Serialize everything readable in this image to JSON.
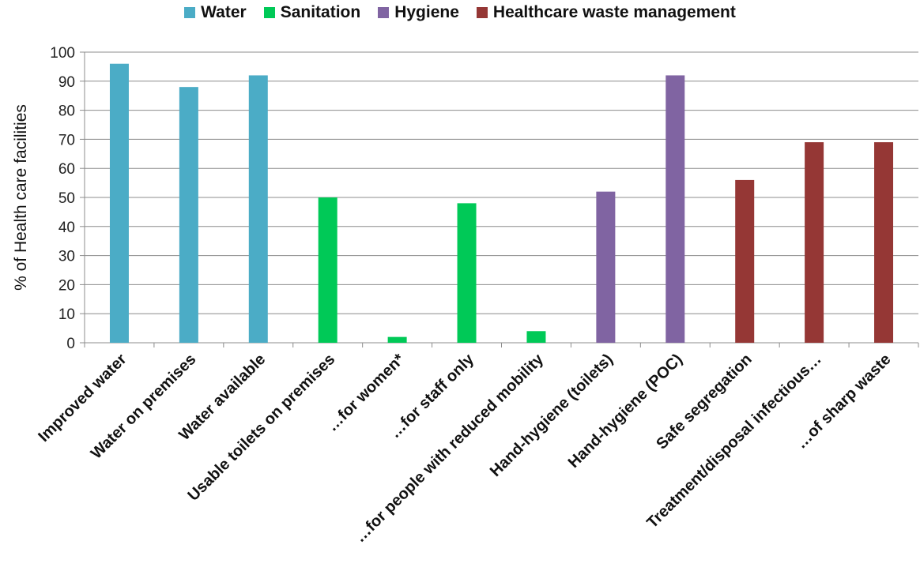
{
  "chart_data": {
    "type": "bar",
    "ylabel": "% of Health care facilities",
    "xlabel": "",
    "ylim": [
      0,
      100
    ],
    "yticks": [
      0,
      10,
      20,
      30,
      40,
      50,
      60,
      70,
      80,
      90,
      100
    ],
    "grid": true,
    "legend_position": "top",
    "series": [
      {
        "name": "Water",
        "color": "#4bacc6"
      },
      {
        "name": "Sanitation",
        "color": "#00c957"
      },
      {
        "name": "Hygiene",
        "color": "#8064a2"
      },
      {
        "name": "Healthcare waste management",
        "color": "#953735"
      }
    ],
    "categories": [
      "Improved water",
      "Water on premises",
      "Water available",
      "Usable toilets on premises",
      "…for women*",
      "…for staff only",
      "…for people with reduced mobility",
      "Hand-hygiene (toilets)",
      "Hand-hygiene (POC)",
      "Safe segregation",
      "Treatment/disposal infectious…",
      "…of sharp waste"
    ],
    "values": [
      96,
      88,
      92,
      50,
      2,
      48,
      4,
      52,
      92,
      56,
      69,
      69
    ],
    "bar_series": [
      0,
      0,
      0,
      1,
      1,
      1,
      1,
      2,
      2,
      3,
      3,
      3
    ]
  }
}
